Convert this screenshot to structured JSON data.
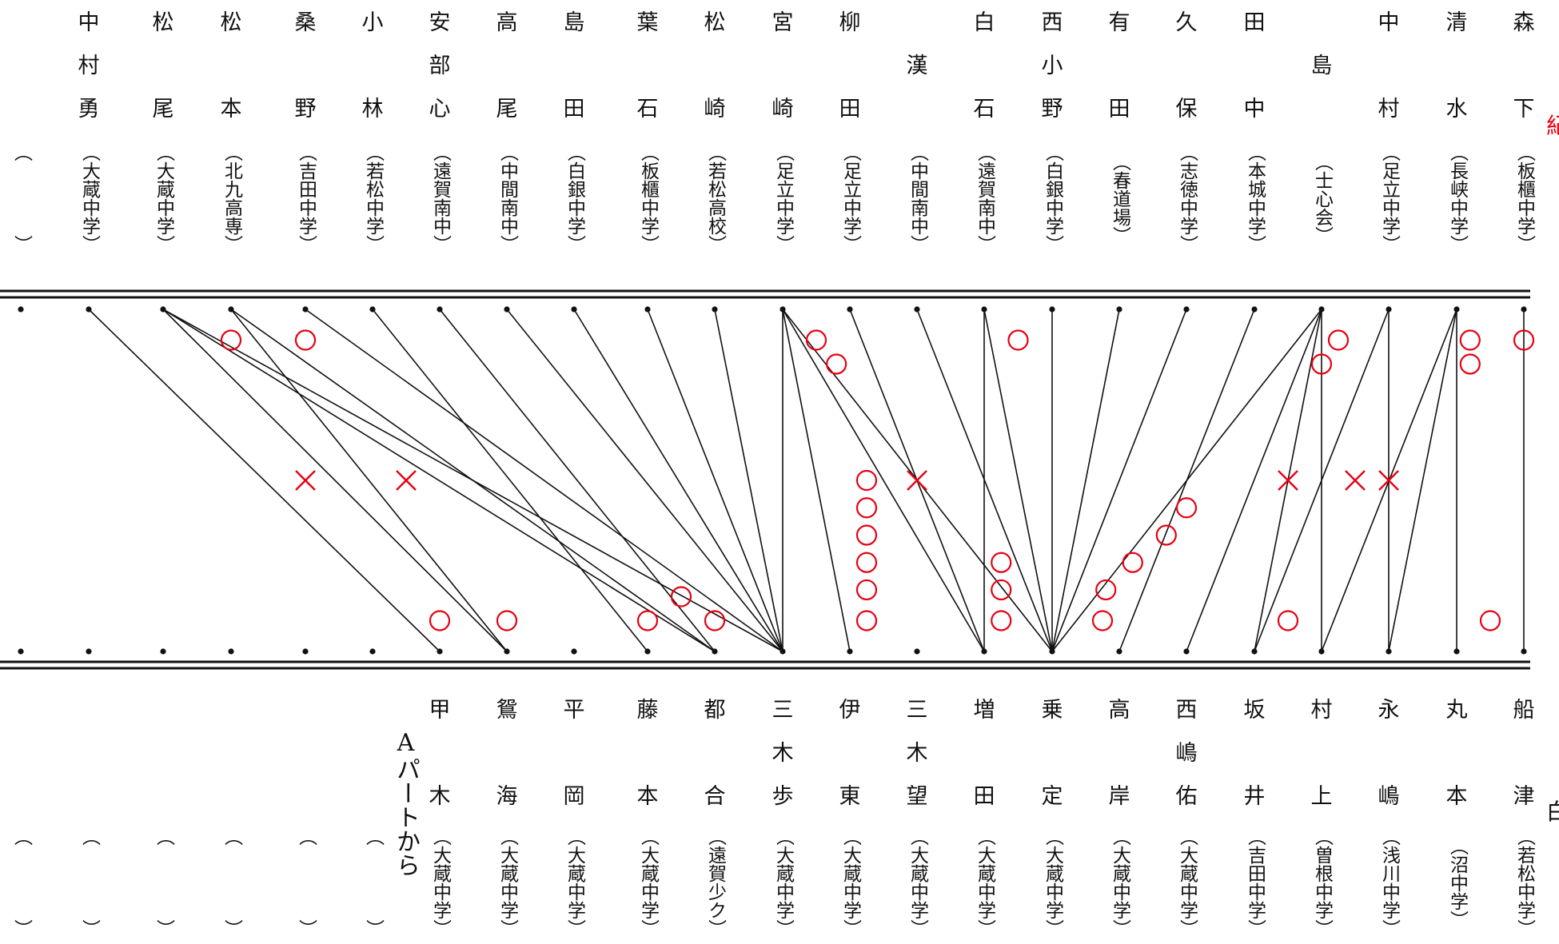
{
  "top_entries": [
    {
      "name": [],
      "club": ""
    },
    {
      "name": [
        "中",
        "村",
        "勇"
      ],
      "club": "大蔵中学"
    },
    {
      "name": [
        "松",
        "",
        "尾"
      ],
      "club": "大蔵中学"
    },
    {
      "name": [
        "松",
        "",
        "本"
      ],
      "club": "北九高専"
    },
    {
      "name": [
        "桑",
        "",
        "野"
      ],
      "club": "吉田中学"
    },
    {
      "name": [
        "小",
        "",
        "林"
      ],
      "club": "若松中学"
    },
    {
      "name": [
        "安",
        "部",
        "心"
      ],
      "club": "遠賀南中"
    },
    {
      "name": [
        "高",
        "",
        "尾"
      ],
      "club": "中間南中"
    },
    {
      "name": [
        "島",
        "",
        "田"
      ],
      "club": "白銀中学"
    },
    {
      "name": [
        "葉",
        "",
        "石"
      ],
      "club": "板櫃中学"
    },
    {
      "name": [
        "松",
        "",
        "崎"
      ],
      "club": "若松高校"
    },
    {
      "name": [
        "宮",
        "",
        "崎"
      ],
      "club": "足立中学"
    },
    {
      "name": [
        "柳",
        "",
        "田"
      ],
      "club": "足立中学"
    },
    {
      "name": [
        "",
        "漢",
        ""
      ],
      "club": "中間南中"
    },
    {
      "name": [
        "白",
        "",
        "石"
      ],
      "club": "遠賀南中"
    },
    {
      "name": [
        "西",
        "小",
        "野"
      ],
      "club": "白銀中学"
    },
    {
      "name": [
        "有",
        "",
        "田"
      ],
      "club": "春道場"
    },
    {
      "name": [
        "久",
        "",
        "保"
      ],
      "club": "志徳中学"
    },
    {
      "name": [
        "田",
        "",
        "中"
      ],
      "club": "本城中学"
    },
    {
      "name": [
        "",
        "島",
        ""
      ],
      "club": "士心会"
    },
    {
      "name": [
        "中",
        "",
        "村"
      ],
      "club": "足立中学"
    },
    {
      "name": [
        "清",
        "",
        "水"
      ],
      "club": "長峡中学"
    },
    {
      "name": [
        "森",
        "",
        "下"
      ],
      "club": "板櫃中学"
    }
  ],
  "bottom_entries": [
    {
      "name": [],
      "club": ""
    },
    {
      "name": [],
      "club": ""
    },
    {
      "name": [],
      "club": ""
    },
    {
      "name": [],
      "club": ""
    },
    {
      "name": [],
      "club": ""
    },
    {
      "name": [],
      "club": ""
    },
    {
      "name": [
        "甲",
        "",
        "木"
      ],
      "club": "大蔵中学"
    },
    {
      "name": [
        "鴛",
        "",
        "海"
      ],
      "club": "大蔵中学"
    },
    {
      "name": [
        "平",
        "",
        "岡"
      ],
      "club": "大蔵中学"
    },
    {
      "name": [
        "藤",
        "",
        "本"
      ],
      "club": "大蔵中学"
    },
    {
      "name": [
        "都",
        "",
        "合"
      ],
      "club": "遠賀少ク"
    },
    {
      "name": [
        "三",
        "木",
        "歩"
      ],
      "club": "大蔵中学"
    },
    {
      "name": [
        "伊",
        "",
        "東"
      ],
      "club": "大蔵中学"
    },
    {
      "name": [
        "三",
        "木",
        "望"
      ],
      "club": "大蔵中学"
    },
    {
      "name": [
        "増",
        "",
        "田"
      ],
      "club": "大蔵中学"
    },
    {
      "name": [
        "乗",
        "",
        "定"
      ],
      "club": "大蔵中学"
    },
    {
      "name": [
        "高",
        "",
        "岸"
      ],
      "club": "大蔵中学"
    },
    {
      "name": [
        "西",
        "嶋",
        "佑"
      ],
      "club": "大蔵中学"
    },
    {
      "name": [
        "坂",
        "",
        "井"
      ],
      "club": "吉田中学"
    },
    {
      "name": [
        "村",
        "",
        "上"
      ],
      "club": "曽根中学"
    },
    {
      "name": [
        "永",
        "",
        "嶋"
      ],
      "club": "浅川中学"
    },
    {
      "name": [
        "丸",
        "",
        "本"
      ],
      "club": "沼中学"
    },
    {
      "name": [
        "船",
        "",
        "津"
      ],
      "club": "若松中学"
    }
  ],
  "bottom_side_label": "Aパートから",
  "edge_texts": {
    "top_right": "紀",
    "bottom_right": "白"
  },
  "matches": [
    [
      1,
      6
    ],
    [
      2,
      7
    ],
    [
      2,
      10
    ],
    [
      2,
      11
    ],
    [
      3,
      7
    ],
    [
      3,
      10
    ],
    [
      4,
      11
    ],
    [
      5,
      9
    ],
    [
      6,
      10
    ],
    [
      7,
      11
    ],
    [
      8,
      11
    ],
    [
      9,
      11
    ],
    [
      10,
      11
    ],
    [
      11,
      11
    ],
    [
      11,
      12
    ],
    [
      11,
      14
    ],
    [
      11,
      15
    ],
    [
      12,
      14
    ],
    [
      13,
      15
    ],
    [
      14,
      14
    ],
    [
      14,
      15
    ],
    [
      15,
      15
    ],
    [
      16,
      15
    ],
    [
      17,
      15
    ],
    [
      18,
      16
    ],
    [
      19,
      15
    ],
    [
      19,
      17
    ],
    [
      19,
      18
    ],
    [
      19,
      19
    ],
    [
      20,
      18
    ],
    [
      20,
      20
    ],
    [
      21,
      19
    ],
    [
      21,
      21
    ],
    [
      21,
      20
    ],
    [
      22,
      22
    ]
  ],
  "result_circles": [
    [
      3,
      0.09
    ],
    [
      4,
      0.09
    ],
    [
      11.5,
      0.09
    ],
    [
      11.8,
      0.16
    ],
    [
      14.5,
      0.09
    ],
    [
      19.25,
      0.09
    ],
    [
      19,
      0.16
    ],
    [
      21.2,
      0.09
    ],
    [
      21.2,
      0.16
    ],
    [
      22.25,
      0.09
    ],
    [
      12.25,
      0.5
    ],
    [
      12.25,
      0.58
    ],
    [
      12.25,
      0.66
    ],
    [
      12.25,
      0.74
    ],
    [
      12.25,
      0.82
    ],
    [
      12.25,
      0.91
    ],
    [
      14.25,
      0.74
    ],
    [
      14.25,
      0.82
    ],
    [
      14.25,
      0.91
    ],
    [
      17,
      0.58
    ],
    [
      16.7,
      0.66
    ],
    [
      16.2,
      0.74
    ],
    [
      15.8,
      0.82
    ],
    [
      15.75,
      0.91
    ],
    [
      9.5,
      0.84
    ],
    [
      6,
      0.91
    ],
    [
      7,
      0.91
    ],
    [
      9,
      0.91
    ],
    [
      10,
      0.91
    ],
    [
      18.5,
      0.91
    ],
    [
      21.5,
      0.91
    ]
  ],
  "result_crosses": [
    [
      4,
      0.5
    ],
    [
      5.5,
      0.5
    ],
    [
      13,
      0.5
    ],
    [
      18.5,
      0.5
    ],
    [
      19.5,
      0.5
    ],
    [
      20,
      0.5
    ]
  ],
  "colors": {
    "lines": "#111111",
    "marks": "#e60012"
  }
}
